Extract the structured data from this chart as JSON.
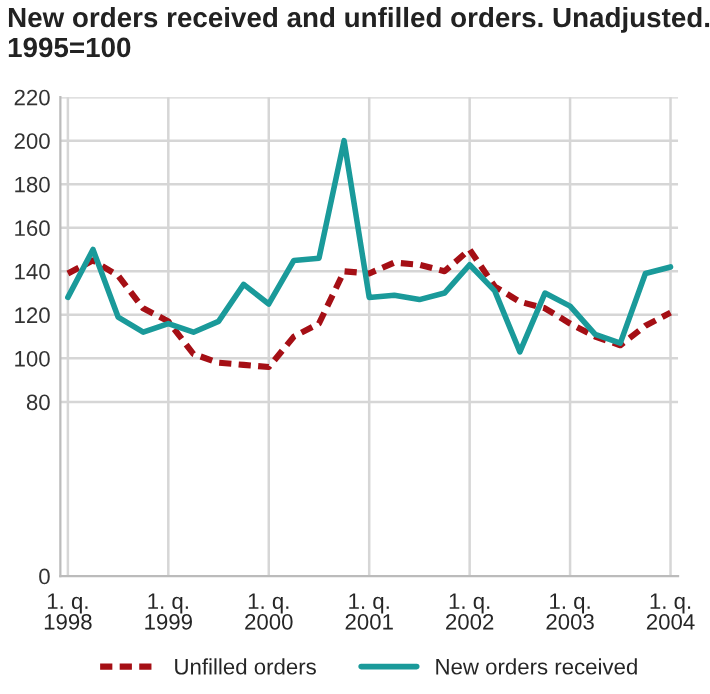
{
  "chart_data": {
    "type": "line",
    "title": "New orders received and unfilled orders. Unadjusted.\n1995=100",
    "categories": [
      "1. q.\n1998",
      null,
      null,
      null,
      "1. q.\n1999",
      null,
      null,
      null,
      "1. q.\n2000",
      null,
      null,
      null,
      "1. q.\n2001",
      null,
      null,
      null,
      "1. q.\n2002",
      null,
      null,
      null,
      "1. q.\n2003",
      null,
      null,
      null,
      "1. q.\n2004"
    ],
    "series": [
      {
        "name": "Unfilled orders",
        "color": "#a50f15",
        "line_style": "dashed",
        "values": [
          139,
          145,
          138,
          123,
          117,
          102,
          98,
          97,
          96,
          110,
          116,
          140,
          139,
          144,
          143,
          140,
          150,
          133,
          126,
          123,
          116,
          110,
          106,
          115,
          121
        ]
      },
      {
        "name": "New orders received",
        "color": "#1a9a9a",
        "line_style": "solid",
        "values": [
          128,
          150,
          119,
          112,
          116,
          112,
          117,
          134,
          125,
          145,
          146,
          200,
          128,
          129,
          127,
          130,
          143,
          131,
          103,
          130,
          124,
          111,
          107,
          139,
          142
        ]
      }
    ],
    "ylim": [
      0,
      220
    ],
    "yticks": [
      0,
      80,
      100,
      120,
      140,
      160,
      180,
      200,
      220
    ],
    "grid": true,
    "legend": "bottom",
    "marker": "none"
  }
}
